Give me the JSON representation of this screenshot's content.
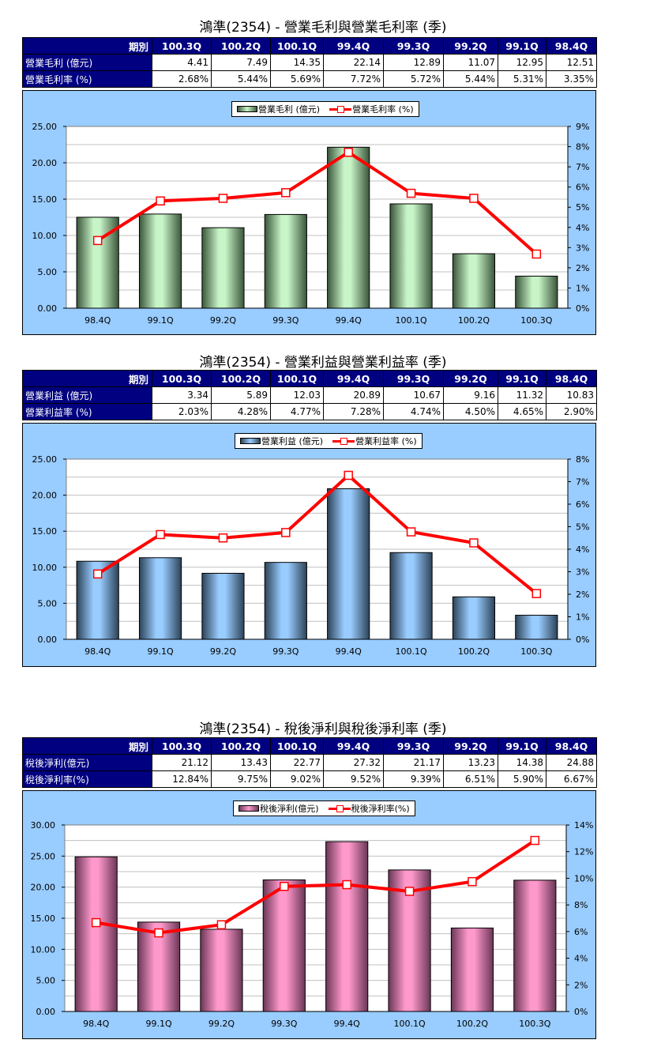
{
  "periods_header": [
    "期別",
    "100.3Q",
    "100.2Q",
    "100.1Q",
    "99.4Q",
    "99.3Q",
    "99.2Q",
    "99.1Q",
    "98.4Q"
  ],
  "sections": [
    {
      "title": "鴻準(2354) - 營業毛利與營業毛利率 (季)",
      "rows": [
        {
          "label": "營業毛利 (億元)",
          "values": [
            "4.41",
            "7.49",
            "14.35",
            "22.14",
            "12.89",
            "11.07",
            "12.95",
            "12.51"
          ]
        },
        {
          "label": "營業毛利率 (%)",
          "values": [
            "2.68%",
            "5.44%",
            "5.69%",
            "7.72%",
            "5.72%",
            "5.44%",
            "5.31%",
            "3.35%"
          ]
        }
      ],
      "legend": {
        "bar": "營業毛利 (億元)",
        "line": "營業毛利率 (%)"
      }
    },
    {
      "title": "鴻準(2354) - 營業利益與營業利益率 (季)",
      "rows": [
        {
          "label": "營業利益 (億元)",
          "values": [
            "3.34",
            "5.89",
            "12.03",
            "20.89",
            "10.67",
            "9.16",
            "11.32",
            "10.83"
          ]
        },
        {
          "label": "營業利益率 (%)",
          "values": [
            "2.03%",
            "4.28%",
            "4.77%",
            "7.28%",
            "4.74%",
            "4.50%",
            "4.65%",
            "2.90%"
          ]
        }
      ],
      "legend": {
        "bar": "營業利益 (億元)",
        "line": "營業利益率 (%)"
      }
    },
    {
      "title": "鴻準(2354) - 稅後淨利與稅後淨利率 (季)",
      "rows": [
        {
          "label": "稅後淨利(億元)",
          "values": [
            "21.12",
            "13.43",
            "22.77",
            "27.32",
            "21.17",
            "13.23",
            "14.38",
            "24.88"
          ]
        },
        {
          "label": "稅後淨利率(%)",
          "values": [
            "12.84%",
            "9.75%",
            "9.02%",
            "9.52%",
            "9.39%",
            "6.51%",
            "5.90%",
            "6.67%"
          ]
        }
      ],
      "legend": {
        "bar": "稅後淨利(億元)",
        "line": "稅後淨利率(%)"
      }
    }
  ],
  "chart_data": [
    {
      "type": "bar+line",
      "title": "鴻準(2354) - 營業毛利與營業毛利率 (季)",
      "categories": [
        "98.4Q",
        "99.1Q",
        "99.2Q",
        "99.3Q",
        "99.4Q",
        "100.1Q",
        "100.2Q",
        "100.3Q"
      ],
      "series": [
        {
          "name": "營業毛利 (億元)",
          "type": "bar",
          "axis": "left",
          "color": "#c8f5c8",
          "values": [
            12.51,
            12.95,
            11.07,
            12.89,
            22.14,
            14.35,
            7.49,
            4.41
          ]
        },
        {
          "name": "營業毛利率 (%)",
          "type": "line",
          "axis": "right",
          "color": "#ff0000",
          "values": [
            3.35,
            5.31,
            5.44,
            5.72,
            7.72,
            5.69,
            5.44,
            2.68
          ]
        }
      ],
      "y_left": {
        "ticks": [
          "0.00",
          "5.00",
          "10.00",
          "15.00",
          "20.00",
          "25.00"
        ],
        "range": [
          0,
          25
        ]
      },
      "y_right": {
        "ticks": [
          "0%",
          "1%",
          "2%",
          "3%",
          "4%",
          "5%",
          "6%",
          "7%",
          "8%",
          "9%"
        ],
        "range": [
          0,
          9
        ]
      },
      "legend_position": "top",
      "grid": true
    },
    {
      "type": "bar+line",
      "title": "鴻準(2354) - 營業利益與營業利益率 (季)",
      "categories": [
        "98.4Q",
        "99.1Q",
        "99.2Q",
        "99.3Q",
        "99.4Q",
        "100.1Q",
        "100.2Q",
        "100.3Q"
      ],
      "series": [
        {
          "name": "營業利益 (億元)",
          "type": "bar",
          "axis": "left",
          "color": "#99ccff",
          "values": [
            10.83,
            11.32,
            9.16,
            10.67,
            20.89,
            12.03,
            5.89,
            3.34
          ]
        },
        {
          "name": "營業利益率 (%)",
          "type": "line",
          "axis": "right",
          "color": "#ff0000",
          "values": [
            2.9,
            4.65,
            4.5,
            4.74,
            7.28,
            4.77,
            4.28,
            2.03
          ]
        }
      ],
      "y_left": {
        "ticks": [
          "0.00",
          "5.00",
          "10.00",
          "15.00",
          "20.00",
          "25.00"
        ],
        "range": [
          0,
          25
        ]
      },
      "y_right": {
        "ticks": [
          "0%",
          "1%",
          "2%",
          "3%",
          "4%",
          "5%",
          "6%",
          "7%",
          "8%"
        ],
        "range": [
          0,
          8
        ]
      },
      "legend_position": "top",
      "grid": true
    },
    {
      "type": "bar+line",
      "title": "鴻準(2354) - 稅後淨利與稅後淨利率 (季)",
      "categories": [
        "98.4Q",
        "99.1Q",
        "99.2Q",
        "99.3Q",
        "99.4Q",
        "100.1Q",
        "100.2Q",
        "100.3Q"
      ],
      "series": [
        {
          "name": "稅後淨利(億元)",
          "type": "bar",
          "axis": "left",
          "color": "#ff99cc",
          "values": [
            24.88,
            14.38,
            13.23,
            21.17,
            27.32,
            22.77,
            13.43,
            21.12
          ]
        },
        {
          "name": "稅後淨利率(%)",
          "type": "line",
          "axis": "right",
          "color": "#ff0000",
          "values": [
            6.67,
            5.9,
            6.51,
            9.39,
            9.52,
            9.02,
            9.75,
            12.84
          ]
        }
      ],
      "y_left": {
        "ticks": [
          "0.00",
          "5.00",
          "10.00",
          "15.00",
          "20.00",
          "25.00",
          "30.00"
        ],
        "range": [
          0,
          30
        ]
      },
      "y_right": {
        "ticks": [
          "0%",
          "2%",
          "4%",
          "6%",
          "8%",
          "10%",
          "12%",
          "14%"
        ],
        "range": [
          0,
          14
        ]
      },
      "legend_position": "top",
      "grid": true
    }
  ]
}
